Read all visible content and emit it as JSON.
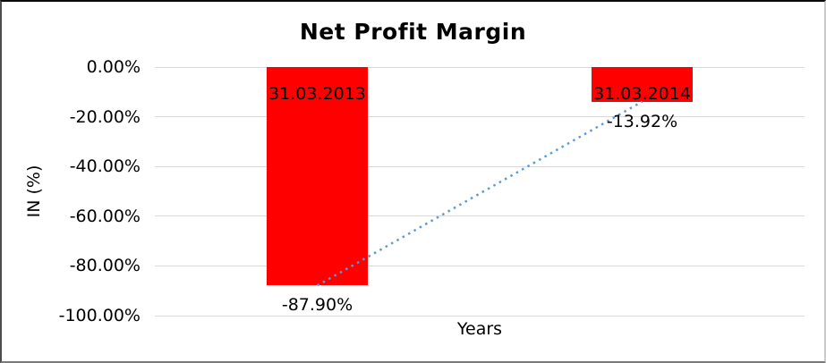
{
  "chart_data": {
    "type": "bar",
    "title": "Net Profit Margin",
    "xlabel": "Years",
    "ylabel": "IN (%)",
    "categories": [
      "31.03.2013",
      "31.03.2014"
    ],
    "values": [
      -87.9,
      -13.92
    ],
    "value_labels": [
      "-87.90%",
      "-13.92%"
    ],
    "y_ticks": [
      {
        "label": "0.00%",
        "value": 0
      },
      {
        "label": "-20.00%",
        "value": -20
      },
      {
        "label": "-40.00%",
        "value": -40
      },
      {
        "label": "-60.00%",
        "value": -60
      },
      {
        "label": "-80.00%",
        "value": -80
      },
      {
        "label": "-100.00%",
        "value": -100
      }
    ],
    "ylim": [
      0,
      -100
    ],
    "grid": "horizontal",
    "legend": "none",
    "bar_color": "#ff0000",
    "gridline_color": "#d9d9d9",
    "text_color": "#000000",
    "trendline": {
      "type": "linear",
      "style": "dotted",
      "color": "#5b9bd5"
    }
  }
}
